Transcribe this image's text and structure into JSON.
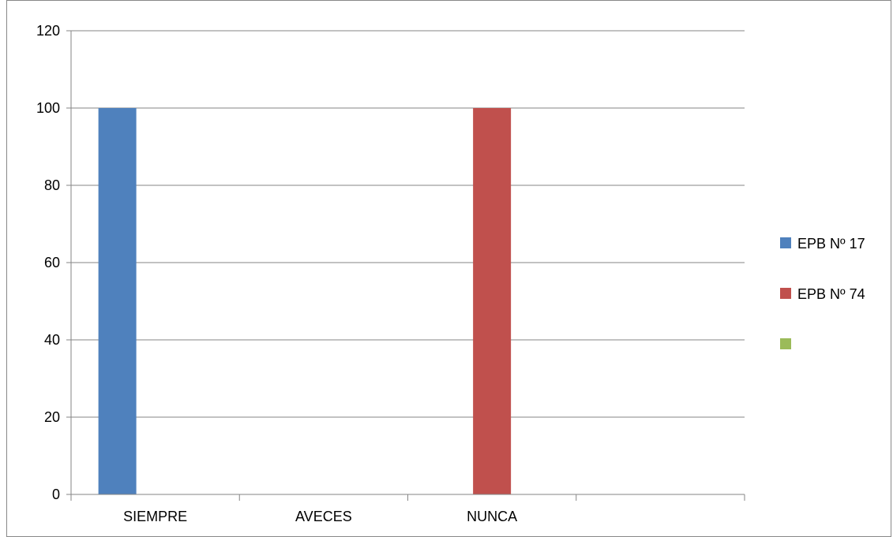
{
  "chart_data": {
    "type": "bar",
    "categories": [
      "SIEMPRE",
      "AVECES",
      "NUNCA",
      ""
    ],
    "series": [
      {
        "name": "EPB Nº 17",
        "color": "#4f81bd",
        "values": [
          100,
          0,
          0,
          0
        ]
      },
      {
        "name": "EPB Nº 74",
        "color": "#c0504d",
        "values": [
          0,
          0,
          100,
          0
        ]
      },
      {
        "name": "",
        "color": "#9bbb59",
        "values": [
          0,
          0,
          0,
          0
        ]
      }
    ],
    "title": "",
    "xlabel": "",
    "ylabel": "",
    "ylim": [
      0,
      120
    ],
    "yticks": [
      0,
      20,
      40,
      60,
      80,
      100,
      120
    ],
    "grid": true,
    "legend_position": "right"
  }
}
